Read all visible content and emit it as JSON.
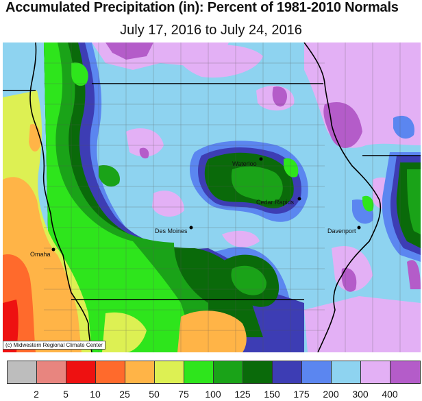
{
  "header": {
    "title": "Accumulated Precipitation (in): Percent of 1981-2010 Normals",
    "subtitle": "July 17, 2016 to July 24, 2016"
  },
  "credit": "(c) Midwestern Regional Climate Center",
  "cities": [
    {
      "name": "Waterloo"
    },
    {
      "name": "Cedar Rapids"
    },
    {
      "name": "Des Moines"
    },
    {
      "name": "Davenport"
    },
    {
      "name": "Omaha"
    }
  ],
  "legend": {
    "colors": [
      "#bdbdbd",
      "#e8857f",
      "#ee1111",
      "#ff6a2c",
      "#ffb447",
      "#ddf053",
      "#2ee51c",
      "#1aa318",
      "#0a6a0a",
      "#3d3db4",
      "#5b86f0",
      "#8ed3f0",
      "#e3b0f5",
      "#b45cc9"
    ],
    "labels": [
      "2",
      "5",
      "10",
      "25",
      "50",
      "75",
      "100",
      "125",
      "150",
      "175",
      "200",
      "300",
      "400"
    ]
  },
  "colors": {
    "lt_blue": "#8ed3f0",
    "blue": "#5b86f0",
    "dk_blue": "#3d3db4",
    "dk_green": "#0a6a0a",
    "green": "#1aa318",
    "lt_green": "#2ee51c",
    "yellow_green": "#ddf053",
    "orange": "#ffb447",
    "red_orange": "#ff6a2c",
    "lt_purple": "#e3b0f5",
    "purple": "#b45cc9"
  }
}
